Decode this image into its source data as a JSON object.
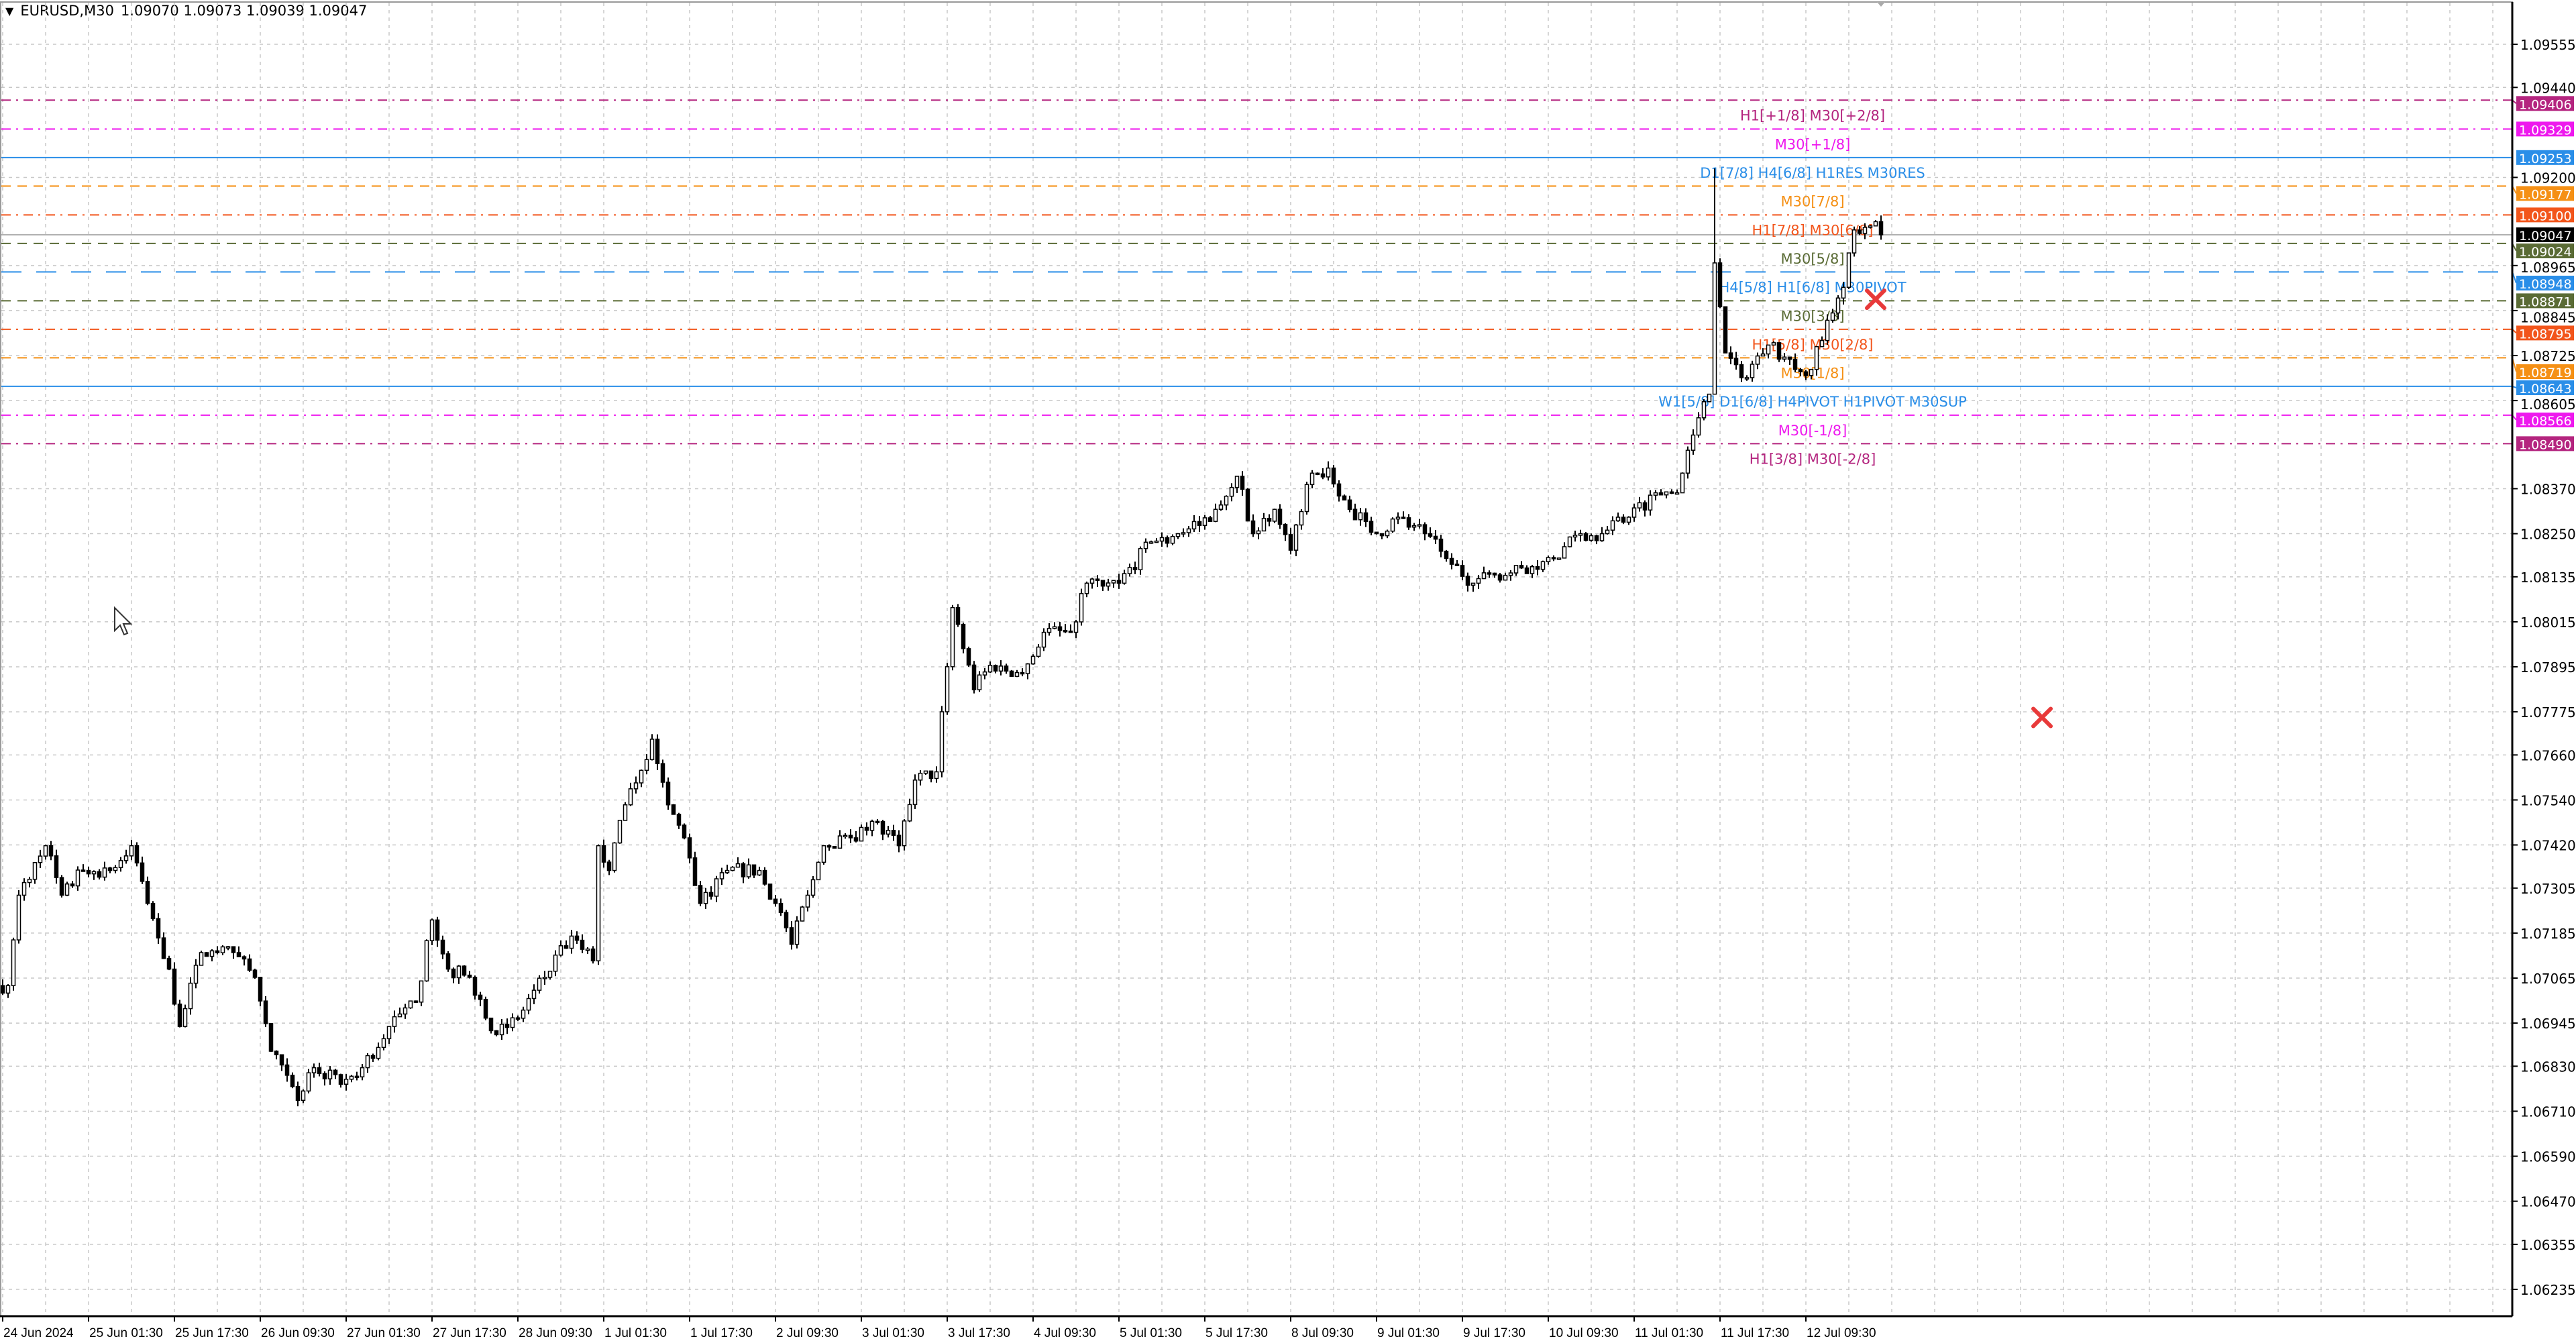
{
  "header": {
    "symbol_timeframe": "EURUSD,M30",
    "ohlc": "1.09070 1.09073 1.09039 1.09047",
    "dropdown_icon": "triangle-down-icon"
  },
  "chart_data": {
    "type": "candlestick",
    "title": "EURUSD,M30",
    "ylim": [
      1.06235,
      1.09555
    ],
    "bar_count": 351,
    "bars_per_time_label": 16,
    "grid": true,
    "last_price": 1.09047,
    "y_ticks": [
      "1.09555",
      "1.09440",
      "1.09200",
      "1.08965",
      "1.08845",
      "1.08725",
      "1.08605",
      "1.08370",
      "1.08250",
      "1.08135",
      "1.08015",
      "1.07895",
      "1.07775",
      "1.07660",
      "1.07540",
      "1.07420",
      "1.07305",
      "1.07185",
      "1.07065",
      "1.06945",
      "1.06830",
      "1.06710",
      "1.06590",
      "1.06470",
      "1.06355",
      "1.06235"
    ],
    "x_ticks": [
      "24 Jun 2024",
      "25 Jun 01:30",
      "25 Jun 17:30",
      "26 Jun 09:30",
      "27 Jun 01:30",
      "27 Jun 17:30",
      "28 Jun 09:30",
      "1 Jul 01:30",
      "1 Jul 17:30",
      "2 Jul 09:30",
      "3 Jul 01:30",
      "3 Jul 17:30",
      "4 Jul 09:30",
      "5 Jul 01:30",
      "5 Jul 17:30",
      "8 Jul 09:30",
      "9 Jul 01:30",
      "9 Jul 17:30",
      "10 Jul 09:30",
      "11 Jul 01:30",
      "11 Jul 17:30",
      "12 Jul 09:30"
    ],
    "close_path": [
      [
        1,
        1.07045
      ],
      [
        3,
        1.07286
      ],
      [
        8,
        1.07418
      ],
      [
        11,
        1.07286
      ],
      [
        15,
        1.07352
      ],
      [
        20,
        1.07352
      ],
      [
        24,
        1.07418
      ],
      [
        27,
        1.07264
      ],
      [
        31,
        1.07089
      ],
      [
        33,
        1.06936
      ],
      [
        37,
        1.07133
      ],
      [
        43,
        1.07133
      ],
      [
        47,
        1.07067
      ],
      [
        50,
        1.0687
      ],
      [
        55,
        1.06739
      ],
      [
        58,
        1.06826
      ],
      [
        63,
        1.06782
      ],
      [
        67,
        1.06826
      ],
      [
        72,
        1.06936
      ],
      [
        77,
        1.07001
      ],
      [
        80,
        1.0722
      ],
      [
        83,
        1.07089
      ],
      [
        87,
        1.07067
      ],
      [
        92,
        1.06914
      ],
      [
        96,
        1.06958
      ],
      [
        101,
        1.07067
      ],
      [
        106,
        1.07177
      ],
      [
        110,
        1.07111
      ],
      [
        111,
        1.07418
      ],
      [
        113,
        1.07352
      ],
      [
        116,
        1.07527
      ],
      [
        121,
        1.07702
      ],
      [
        124,
        1.07527
      ],
      [
        127,
        1.07439
      ],
      [
        130,
        1.07264
      ],
      [
        135,
        1.07352
      ],
      [
        141,
        1.07352
      ],
      [
        144,
        1.07264
      ],
      [
        147,
        1.07155
      ],
      [
        150,
        1.07286
      ],
      [
        153,
        1.07418
      ],
      [
        158,
        1.07439
      ],
      [
        162,
        1.07483
      ],
      [
        167,
        1.07418
      ],
      [
        170,
        1.07593
      ],
      [
        174,
        1.07615
      ],
      [
        177,
        1.08053
      ],
      [
        181,
        1.07834
      ],
      [
        184,
        1.07899
      ],
      [
        190,
        1.07877
      ],
      [
        194,
        1.07987
      ],
      [
        199,
        1.07987
      ],
      [
        202,
        1.08118
      ],
      [
        208,
        1.08118
      ],
      [
        214,
        1.08228
      ],
      [
        219,
        1.0825
      ],
      [
        223,
        1.08272
      ],
      [
        226,
        1.08315
      ],
      [
        230,
        1.08403
      ],
      [
        233,
        1.0825
      ],
      [
        237,
        1.08315
      ],
      [
        240,
        1.08206
      ],
      [
        243,
        1.08381
      ],
      [
        247,
        1.08425
      ],
      [
        251,
        1.08315
      ],
      [
        256,
        1.0825
      ],
      [
        260,
        1.08294
      ],
      [
        265,
        1.0825
      ],
      [
        269,
        1.08184
      ],
      [
        274,
        1.08118
      ],
      [
        278,
        1.0814
      ],
      [
        285,
        1.08162
      ],
      [
        289,
        1.08184
      ],
      [
        294,
        1.0825
      ],
      [
        298,
        1.0825
      ],
      [
        303,
        1.08294
      ],
      [
        308,
        1.08359
      ],
      [
        312,
        1.08359
      ],
      [
        315,
        1.08513
      ],
      [
        318,
        1.08622
      ],
      [
        319,
        1.08972
      ],
      [
        321,
        1.08732
      ],
      [
        324,
        1.08666
      ],
      [
        329,
        1.08753
      ],
      [
        334,
        1.08688
      ],
      [
        337,
        1.08688
      ],
      [
        340,
        1.08819
      ],
      [
        343,
        1.08907
      ],
      [
        345,
        1.0906
      ],
      [
        349,
        1.09082
      ],
      [
        350,
        1.09047
      ]
    ],
    "levels": [
      {
        "price": "1.09406",
        "label": "H1[+1/8] M30[+2/8]",
        "color": "#b4257f",
        "style": "dashdot"
      },
      {
        "price": "1.09329",
        "label": "M30[+1/8]",
        "color": "#ee18ee",
        "style": "dashdot"
      },
      {
        "price": "1.09253",
        "label": "D1[7/8] H4[6/8] H1RES M30RES",
        "color": "#2a8ee8",
        "style": "solid"
      },
      {
        "price": "1.09177",
        "label": "M30[7/8]",
        "color": "#f59015",
        "style": "dash"
      },
      {
        "price": "1.09100",
        "label": "H1[7/8] M30[6/8]",
        "color": "#f2551b",
        "style": "dashdot"
      },
      {
        "price": "1.09024",
        "label": "M30[5/8]",
        "color": "#5a6b35",
        "style": "dash"
      },
      {
        "price": "1.08948",
        "label": "H4[5/8] H1[6/8] M30PIVOT",
        "color": "#2a8ee8",
        "style": "longdash"
      },
      {
        "price": "1.08871",
        "label": "M30[3/8]",
        "color": "#5a6b35",
        "style": "dash"
      },
      {
        "price": "1.08795",
        "label": "H1[5/8] M30[2/8]",
        "color": "#f2551b",
        "style": "dashdot"
      },
      {
        "price": "1.08719",
        "label": "M30[1/8]",
        "color": "#f59015",
        "style": "dash"
      },
      {
        "price": "1.08643",
        "label": "W1[5/8] D1[6/8] H4PIVOT H1PIVOT M30SUP",
        "color": "#2a8ee8",
        "style": "solid"
      },
      {
        "price": "1.08566",
        "label": "M30[-1/8]",
        "color": "#ee18ee",
        "style": "dashdot"
      },
      {
        "price": "1.08490",
        "label": "H1[3/8] M30[-2/8]",
        "color": "#b4257f",
        "style": "dashdot"
      }
    ],
    "current_price_label": "1.09047",
    "markers": [
      {
        "type": "cross",
        "color": "#e83a3a",
        "bar": 349,
        "price": 1.08875
      },
      {
        "type": "cross",
        "color": "#e83a3a",
        "bar": 380,
        "price": 1.0776
      }
    ]
  }
}
